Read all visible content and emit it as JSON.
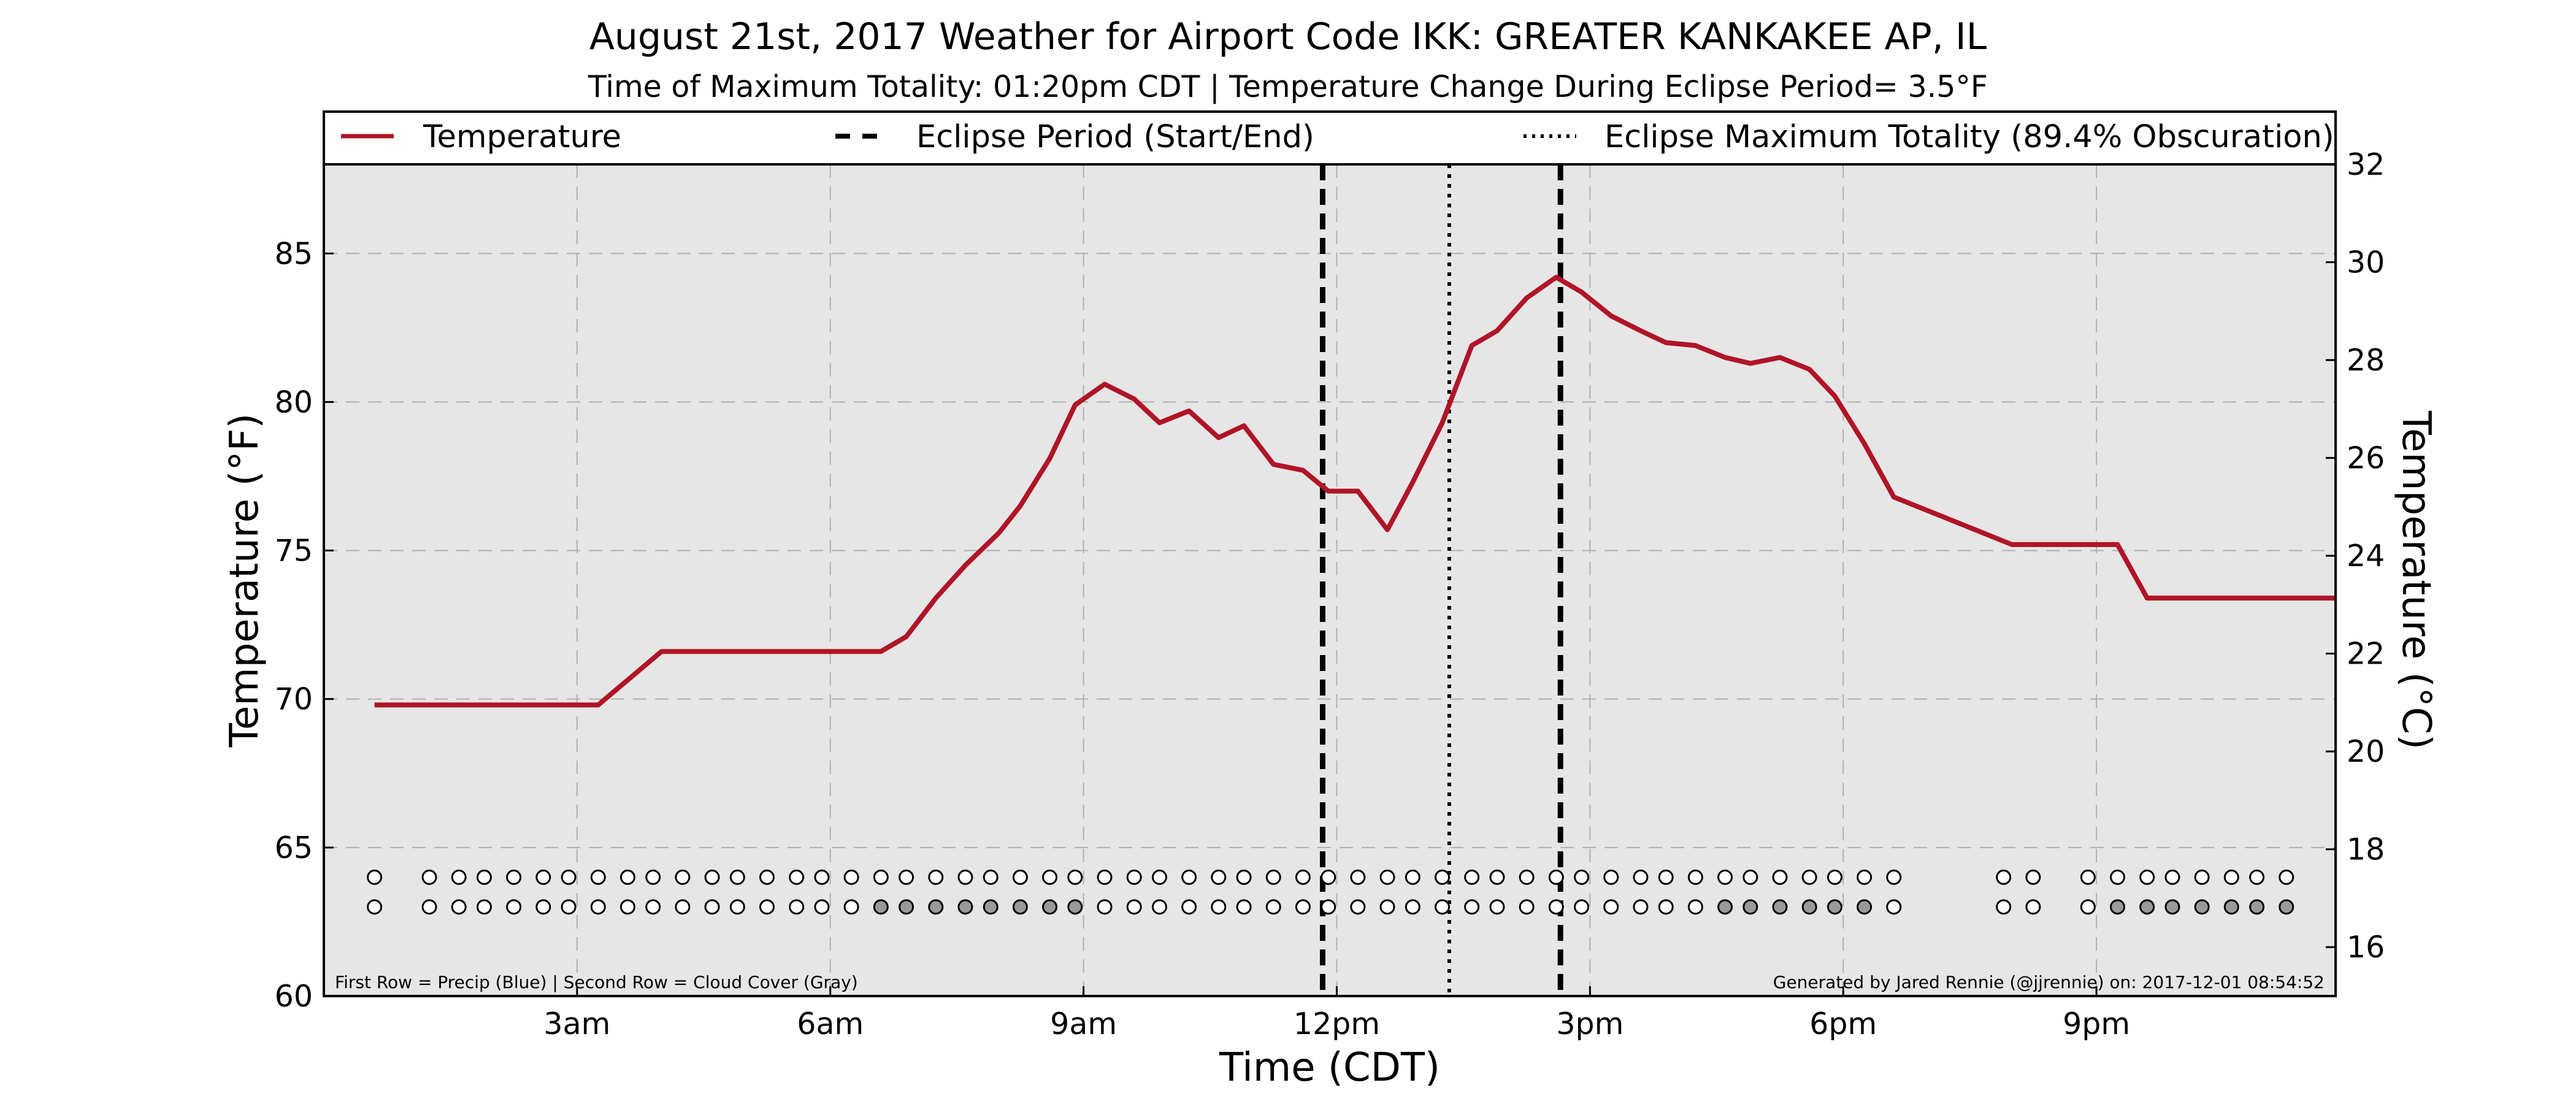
{
  "chart_data": {
    "type": "line",
    "title": "August 21st, 2017 Weather for Airport Code IKK: GREATER KANKAKEE AP, IL",
    "subtitle": "Time of Maximum Totality: 01:20pm CDT | Temperature Change During Eclipse Period= 3.5°F",
    "xlabel": "Time (CDT)",
    "ylabel": "Temperature (°F)",
    "ylabel_right": "Temperature (°C)",
    "xlim": [
      0.0,
      23.833
    ],
    "ylim": [
      60,
      88
    ],
    "ylim_right": [
      15.0,
      32.0
    ],
    "x_ticks": [
      {
        "label": "3am",
        "hour": 3
      },
      {
        "label": "6am",
        "hour": 6
      },
      {
        "label": "9am",
        "hour": 9
      },
      {
        "label": "12pm",
        "hour": 12
      },
      {
        "label": "3pm",
        "hour": 15
      },
      {
        "label": "6pm",
        "hour": 18
      },
      {
        "label": "9pm",
        "hour": 21
      }
    ],
    "y_ticks": [
      60,
      65,
      70,
      75,
      80,
      85
    ],
    "y_ticks_right": [
      16,
      18,
      20,
      22,
      24,
      26,
      28,
      30,
      32
    ],
    "grid": true,
    "legend_placement": "top, above plot",
    "legend": [
      {
        "label": "Temperature",
        "style": "solid",
        "color": "#b01427"
      },
      {
        "label": "Eclipse Period (Start/End)",
        "style": "dashed",
        "color": "#000000"
      },
      {
        "label": "Eclipse Maximum Totality (89.4% Obscuration)",
        "style": "dotted",
        "color": "#000000"
      }
    ],
    "series": [
      {
        "name": "Temperature",
        "color": "#b01427",
        "points": [
          {
            "hour": 0.6,
            "temp": 69.8
          },
          {
            "hour": 3.25,
            "temp": 69.8
          },
          {
            "hour": 4.0,
            "temp": 71.6
          },
          {
            "hour": 6.6,
            "temp": 71.6
          },
          {
            "hour": 6.9,
            "temp": 72.1
          },
          {
            "hour": 7.25,
            "temp": 73.4
          },
          {
            "hour": 7.6,
            "temp": 74.5
          },
          {
            "hour": 8.0,
            "temp": 75.6
          },
          {
            "hour": 8.25,
            "temp": 76.5
          },
          {
            "hour": 8.6,
            "temp": 78.1
          },
          {
            "hour": 8.9,
            "temp": 79.9
          },
          {
            "hour": 9.25,
            "temp": 80.6
          },
          {
            "hour": 9.6,
            "temp": 80.1
          },
          {
            "hour": 9.9,
            "temp": 79.3
          },
          {
            "hour": 10.25,
            "temp": 79.7
          },
          {
            "hour": 10.6,
            "temp": 78.8
          },
          {
            "hour": 10.9,
            "temp": 79.2
          },
          {
            "hour": 11.25,
            "temp": 77.9
          },
          {
            "hour": 11.6,
            "temp": 77.7
          },
          {
            "hour": 11.9,
            "temp": 77.0
          },
          {
            "hour": 12.25,
            "temp": 77.0
          },
          {
            "hour": 12.6,
            "temp": 75.7
          },
          {
            "hour": 12.9,
            "temp": 77.3
          },
          {
            "hour": 13.25,
            "temp": 79.3
          },
          {
            "hour": 13.6,
            "temp": 81.9
          },
          {
            "hour": 13.9,
            "temp": 82.4
          },
          {
            "hour": 14.25,
            "temp": 83.5
          },
          {
            "hour": 14.6,
            "temp": 84.2
          },
          {
            "hour": 14.9,
            "temp": 83.7
          },
          {
            "hour": 15.25,
            "temp": 82.9
          },
          {
            "hour": 15.6,
            "temp": 82.4
          },
          {
            "hour": 15.9,
            "temp": 82.0
          },
          {
            "hour": 16.25,
            "temp": 81.9
          },
          {
            "hour": 16.6,
            "temp": 81.5
          },
          {
            "hour": 16.9,
            "temp": 81.3
          },
          {
            "hour": 17.25,
            "temp": 81.5
          },
          {
            "hour": 17.6,
            "temp": 81.1
          },
          {
            "hour": 17.9,
            "temp": 80.2
          },
          {
            "hour": 18.25,
            "temp": 78.6
          },
          {
            "hour": 18.6,
            "temp": 76.8
          },
          {
            "hour": 20.0,
            "temp": 75.2
          },
          {
            "hour": 21.25,
            "temp": 75.2
          },
          {
            "hour": 21.6,
            "temp": 73.4
          },
          {
            "hour": 23.833,
            "temp": 73.4
          }
        ]
      }
    ],
    "eclipse_start_hour": 11.833,
    "eclipse_end_hour": 14.65,
    "eclipse_max_hour": 13.333,
    "obs_rows": {
      "note": "First Row = Precip (Blue) | Second Row = Cloud Cover (Gray)",
      "precip_y": 64,
      "cloud_y": 63,
      "markers": [
        {
          "hour": 0.6,
          "precip": false,
          "cloud": false
        },
        {
          "hour": 1.25,
          "precip": false,
          "cloud": false
        },
        {
          "hour": 1.6,
          "precip": false,
          "cloud": false
        },
        {
          "hour": 1.9,
          "precip": false,
          "cloud": false
        },
        {
          "hour": 2.25,
          "precip": false,
          "cloud": false
        },
        {
          "hour": 2.6,
          "precip": false,
          "cloud": false
        },
        {
          "hour": 2.9,
          "precip": false,
          "cloud": false
        },
        {
          "hour": 3.25,
          "precip": false,
          "cloud": false
        },
        {
          "hour": 3.6,
          "precip": false,
          "cloud": false
        },
        {
          "hour": 3.9,
          "precip": false,
          "cloud": false
        },
        {
          "hour": 4.25,
          "precip": false,
          "cloud": false
        },
        {
          "hour": 4.6,
          "precip": false,
          "cloud": false
        },
        {
          "hour": 4.9,
          "precip": false,
          "cloud": false
        },
        {
          "hour": 5.25,
          "precip": false,
          "cloud": false
        },
        {
          "hour": 5.6,
          "precip": false,
          "cloud": false
        },
        {
          "hour": 5.9,
          "precip": false,
          "cloud": false
        },
        {
          "hour": 6.25,
          "precip": false,
          "cloud": false
        },
        {
          "hour": 6.6,
          "precip": false,
          "cloud": true
        },
        {
          "hour": 6.9,
          "precip": false,
          "cloud": true
        },
        {
          "hour": 7.25,
          "precip": false,
          "cloud": true
        },
        {
          "hour": 7.6,
          "precip": false,
          "cloud": true
        },
        {
          "hour": 7.9,
          "precip": false,
          "cloud": true
        },
        {
          "hour": 8.25,
          "precip": false,
          "cloud": true
        },
        {
          "hour": 8.6,
          "precip": false,
          "cloud": true
        },
        {
          "hour": 8.9,
          "precip": false,
          "cloud": true
        },
        {
          "hour": 9.25,
          "precip": false,
          "cloud": false
        },
        {
          "hour": 9.6,
          "precip": false,
          "cloud": false
        },
        {
          "hour": 9.9,
          "precip": false,
          "cloud": false
        },
        {
          "hour": 10.25,
          "precip": false,
          "cloud": false
        },
        {
          "hour": 10.6,
          "precip": false,
          "cloud": false
        },
        {
          "hour": 10.9,
          "precip": false,
          "cloud": false
        },
        {
          "hour": 11.25,
          "precip": false,
          "cloud": false
        },
        {
          "hour": 11.6,
          "precip": false,
          "cloud": false
        },
        {
          "hour": 11.9,
          "precip": false,
          "cloud": false
        },
        {
          "hour": 12.25,
          "precip": false,
          "cloud": false
        },
        {
          "hour": 12.6,
          "precip": false,
          "cloud": false
        },
        {
          "hour": 12.9,
          "precip": false,
          "cloud": false
        },
        {
          "hour": 13.25,
          "precip": false,
          "cloud": false
        },
        {
          "hour": 13.6,
          "precip": false,
          "cloud": false
        },
        {
          "hour": 13.9,
          "precip": false,
          "cloud": false
        },
        {
          "hour": 14.25,
          "precip": false,
          "cloud": false
        },
        {
          "hour": 14.6,
          "precip": false,
          "cloud": false
        },
        {
          "hour": 14.9,
          "precip": false,
          "cloud": false
        },
        {
          "hour": 15.25,
          "precip": false,
          "cloud": false
        },
        {
          "hour": 15.6,
          "precip": false,
          "cloud": false
        },
        {
          "hour": 15.9,
          "precip": false,
          "cloud": false
        },
        {
          "hour": 16.25,
          "precip": false,
          "cloud": false
        },
        {
          "hour": 16.6,
          "precip": false,
          "cloud": true
        },
        {
          "hour": 16.9,
          "precip": false,
          "cloud": true
        },
        {
          "hour": 17.25,
          "precip": false,
          "cloud": true
        },
        {
          "hour": 17.6,
          "precip": false,
          "cloud": true
        },
        {
          "hour": 17.9,
          "precip": false,
          "cloud": true
        },
        {
          "hour": 18.25,
          "precip": false,
          "cloud": true
        },
        {
          "hour": 18.6,
          "precip": false,
          "cloud": false
        },
        {
          "hour": 19.9,
          "precip": false,
          "cloud": false
        },
        {
          "hour": 20.25,
          "precip": false,
          "cloud": false
        },
        {
          "hour": 20.9,
          "precip": false,
          "cloud": false
        },
        {
          "hour": 21.25,
          "precip": false,
          "cloud": true
        },
        {
          "hour": 21.6,
          "precip": false,
          "cloud": true
        },
        {
          "hour": 21.9,
          "precip": false,
          "cloud": true
        },
        {
          "hour": 22.25,
          "precip": false,
          "cloud": true
        },
        {
          "hour": 22.6,
          "precip": false,
          "cloud": true
        },
        {
          "hour": 22.9,
          "precip": false,
          "cloud": true
        },
        {
          "hour": 23.25,
          "precip": false,
          "cloud": true
        }
      ]
    },
    "credit": "Generated by Jared Rennie (@jjrennie) on: 2017-12-01 08:54:52",
    "colors": {
      "plot_background": "#e6e6e6",
      "grid": "#b0b0b0",
      "temperature_line": "#b01427",
      "precip_fill": "#3b6fd8",
      "cloud_fill": "#9a9a9a",
      "empty_marker": "#ffffff"
    }
  }
}
